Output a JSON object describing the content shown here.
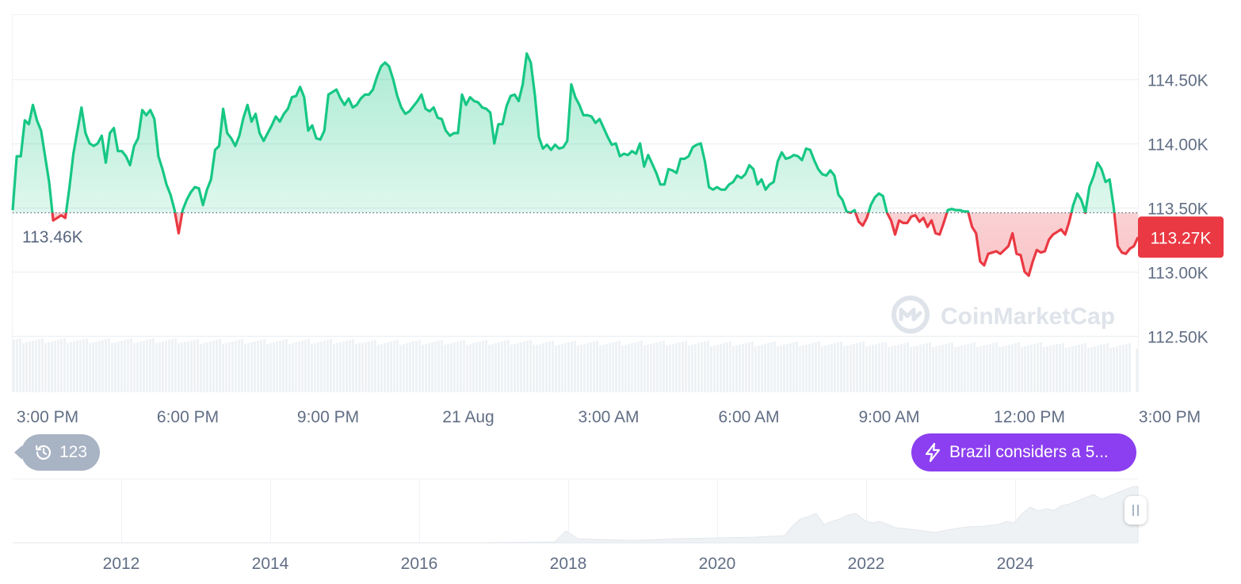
{
  "colors": {
    "up": "#16c784",
    "down": "#ea3943",
    "grid": "#eff2f5",
    "axis_text": "#616e85",
    "volume": "#eff2f5",
    "baseline": "#58667e",
    "news": "#8c3ff0",
    "history": "#a8b3c4"
  },
  "watermark": "CoinMarketCap",
  "baseline_label": "113.46K",
  "current_price_label": "113.27K",
  "history_badge": {
    "icon": "history-icon",
    "count": "123"
  },
  "news_pill": {
    "icon": "lightning-icon",
    "text": "Brazil considers a 5..."
  },
  "chart_data": {
    "type": "line",
    "y_axis": {
      "ticks": [
        114500,
        114000,
        113500,
        113000,
        112500
      ],
      "tick_labels": [
        "114.50K",
        "114.00K",
        "113.50K",
        "113.00K",
        "112.50K"
      ],
      "range": [
        112500,
        114970
      ],
      "position": "right"
    },
    "x_axis": {
      "tick_labels": [
        "3:00 PM",
        "6:00 PM",
        "9:00 PM",
        "21 Aug",
        "3:00 AM",
        "6:00 AM",
        "9:00 AM",
        "12:00 PM",
        "3:00 PM"
      ]
    },
    "baseline": 113460,
    "current": 113270,
    "series": [
      {
        "values": [
          113480,
          113900,
          113900,
          114180,
          114150,
          114300,
          114180,
          114100,
          113900,
          113700,
          113400,
          113420,
          113440,
          113420,
          113650,
          113920,
          114100,
          114280,
          114080,
          114000,
          113980,
          114000,
          114060,
          113850,
          114080,
          114120,
          113940,
          113940,
          113900,
          113830,
          113980,
          114040,
          114260,
          114220,
          114260,
          114190,
          113900,
          113800,
          113680,
          113600,
          113480,
          113300,
          113480,
          113560,
          113620,
          113660,
          113650,
          113520,
          113640,
          113720,
          113950,
          113980,
          114270,
          114080,
          114040,
          113980,
          114060,
          114200,
          114300,
          114170,
          114230,
          114080,
          114020,
          114080,
          114140,
          114210,
          114170,
          114230,
          114270,
          114360,
          114370,
          114440,
          114360,
          114100,
          114140,
          114040,
          114030,
          114100,
          114380,
          114400,
          114420,
          114350,
          114300,
          114350,
          114280,
          114300,
          114350,
          114380,
          114380,
          114420,
          114520,
          114600,
          114630,
          114600,
          114500,
          114370,
          114280,
          114230,
          114250,
          114290,
          114330,
          114380,
          114270,
          114250,
          114280,
          114200,
          114190,
          114100,
          114060,
          114080,
          114080,
          114380,
          114300,
          114360,
          114330,
          114320,
          114280,
          114270,
          114240,
          114000,
          114150,
          114150,
          114290,
          114370,
          114380,
          114330,
          114460,
          114700,
          114630,
          114380,
          114050,
          113960,
          113990,
          113950,
          113990,
          113960,
          113970,
          114020,
          114460,
          114360,
          114300,
          114220,
          114220,
          114210,
          114160,
          114190,
          114120,
          114050,
          113990,
          114000,
          113900,
          113920,
          113910,
          113940,
          113920,
          114000,
          113820,
          113910,
          113840,
          113770,
          113680,
          113680,
          113800,
          113790,
          113770,
          113880,
          113880,
          113900,
          113970,
          113990,
          114000,
          113860,
          113660,
          113640,
          113660,
          113640,
          113640,
          113680,
          113700,
          113750,
          113730,
          113760,
          113830,
          113800,
          113680,
          113720,
          113640,
          113680,
          113700,
          113860,
          113930,
          113880,
          113890,
          113910,
          113900,
          113870,
          113960,
          113950,
          113870,
          113800,
          113760,
          113750,
          113790,
          113750,
          113600,
          113560,
          113470,
          113460,
          113480,
          113390,
          113360,
          113420,
          113520,
          113580,
          113610,
          113590,
          113460,
          113400,
          113290,
          113400,
          113380,
          113380,
          113430,
          113440,
          113390,
          113420,
          113350,
          113400,
          113300,
          113290,
          113380,
          113480,
          113490,
          113480,
          113480,
          113470,
          113470,
          113350,
          113300,
          113080,
          113050,
          113140,
          113150,
          113160,
          113140,
          113170,
          113200,
          113300,
          113140,
          113130,
          113000,
          112970,
          113080,
          113170,
          113150,
          113160,
          113250,
          113290,
          113310,
          113330,
          113290,
          113390,
          113520,
          113610,
          113560,
          113460,
          113660,
          113740,
          113850,
          113800,
          113700,
          113720,
          113500,
          113200,
          113150,
          113140,
          113180,
          113200,
          113270
        ]
      }
    ],
    "overview": {
      "type": "area",
      "x_tick_labels": [
        "2012",
        "2014",
        "2016",
        "2018",
        "2020",
        "2022",
        "2024"
      ]
    }
  }
}
